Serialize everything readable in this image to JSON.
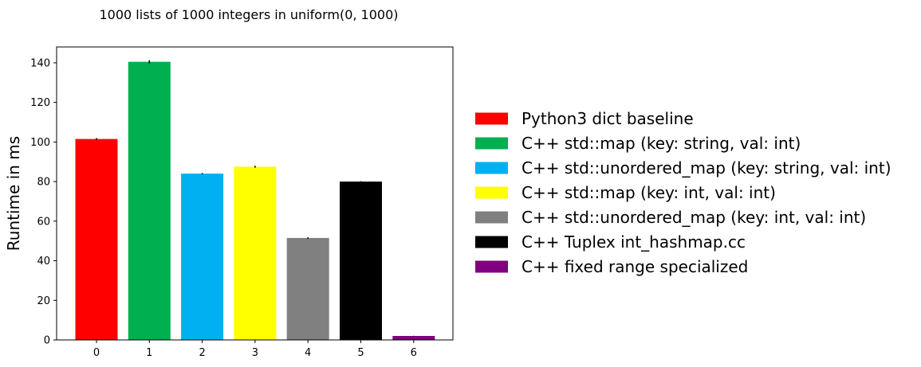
{
  "chart_data": {
    "type": "bar",
    "title": "1000 lists of 1000 integers in uniform(0, 1000)",
    "xlabel": "",
    "ylabel": "Runtime in ms",
    "categories": [
      "0",
      "1",
      "2",
      "3",
      "4",
      "5",
      "6"
    ],
    "values": [
      101.5,
      140.5,
      84.0,
      87.5,
      51.5,
      80.0,
      2.0
    ],
    "errors": [
      0.5,
      0.8,
      0.3,
      0.5,
      0.4,
      0.2,
      0.1
    ],
    "ylim": [
      0,
      148
    ],
    "yticks": [
      0,
      20,
      40,
      60,
      80,
      100,
      120,
      140
    ],
    "colors": [
      "#ff0000",
      "#00b050",
      "#00b0f0",
      "#ffff00",
      "#808080",
      "#000000",
      "#800080"
    ],
    "series_names": [
      "Python3 dict baseline",
      "C++ std::map (key: string, val: int)",
      "C++ std::unordered_map (key: string, val: int)",
      "C++ std::map (key: int, val: int)",
      "C++ std::unordered_map (key: int, val: int)",
      "C++ Tuplex int_hashmap.cc",
      "C++ fixed range specialized"
    ],
    "grid": false,
    "legend_position": "right"
  }
}
